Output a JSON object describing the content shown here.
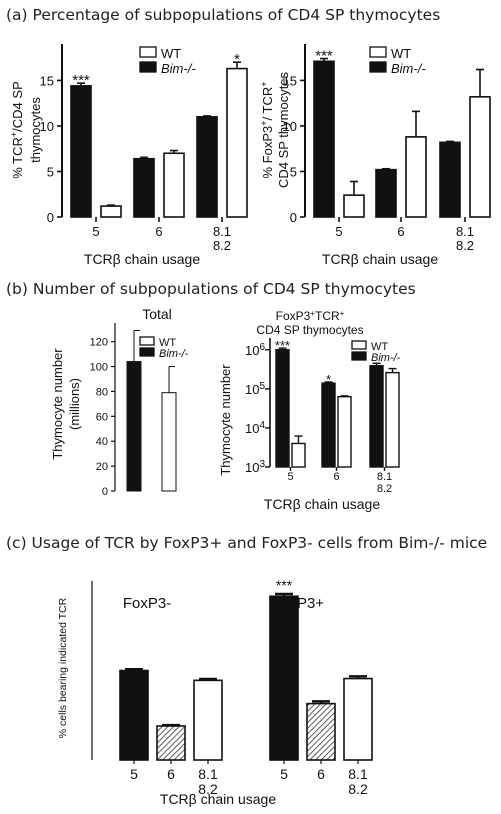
{
  "sections": {
    "a": "(a) Percentage of subpopulations of  CD4 SP thymocytes",
    "b": "(b) Number of subpopulations of  CD4 SP thymocytes",
    "c": "(c) Usage of TCR by FoxP3+ and FoxP3- cells from Bim-/- mice"
  },
  "colors": {
    "ink": "#111111",
    "fill_black": "#111111",
    "fill_white": "#ffffff",
    "hatch": "#333333"
  },
  "chart_data": [
    {
      "id": "a1",
      "type": "bar",
      "categories": [
        "5",
        "6",
        "8.1\n8.2"
      ],
      "series": [
        {
          "name": "WT",
          "fill": "white",
          "values": [
            1.2,
            7.0,
            16.3
          ],
          "errors": [
            0.1,
            0.3,
            0.7
          ]
        },
        {
          "name": "Bim-/-",
          "fill": "black",
          "values": [
            14.4,
            6.4,
            11.0
          ],
          "errors": [
            0.3,
            0.15,
            0.1
          ]
        }
      ],
      "series_order": [
        "Bim-/-",
        "WT"
      ],
      "ylim": [
        0,
        19
      ],
      "yticks": [
        0,
        5,
        10,
        15
      ],
      "ylabel": [
        "% TCR",
        "+",
        "/CD4 SP",
        "thymocytes"
      ],
      "xlabel": "TCRβ  chain usage",
      "legend": "top-right",
      "annotations": [
        {
          "category": "5",
          "series": "Bim-/-",
          "text": "***"
        },
        {
          "category": "8.1\n8.2",
          "series": "WT",
          "text": "*"
        }
      ]
    },
    {
      "id": "a2",
      "type": "bar",
      "categories": [
        "5",
        "6",
        "8.1\n8.2"
      ],
      "series": [
        {
          "name": "WT",
          "fill": "white",
          "values": [
            2.4,
            8.8,
            13.2
          ],
          "errors": [
            1.5,
            2.8,
            3.0
          ]
        },
        {
          "name": "Bim-/-",
          "fill": "black",
          "values": [
            17.1,
            5.2,
            8.2
          ],
          "errors": [
            0.3,
            0.1,
            0.1
          ]
        }
      ],
      "series_order": [
        "Bim-/-",
        "WT"
      ],
      "ylim": [
        0,
        19
      ],
      "yticks": [
        0,
        5,
        10,
        15
      ],
      "ylabel": [
        "% FoxP3",
        "+",
        "/ TCR",
        "+",
        "CD4 SP thymocytes"
      ],
      "xlabel": "TCRβ  chain usage",
      "legend": "top-right",
      "annotations": [
        {
          "category": "5",
          "series": "Bim-/-",
          "text": "***"
        }
      ]
    },
    {
      "id": "b1",
      "type": "bar",
      "title": "Total",
      "categories": [
        ""
      ],
      "series": [
        {
          "name": "Bim-/-",
          "fill": "black",
          "values": [
            104
          ],
          "errors": [
            25
          ]
        },
        {
          "name": "WT",
          "fill": "white",
          "values": [
            79
          ],
          "errors": [
            21
          ]
        }
      ],
      "series_order": [
        "Bim-/-",
        "WT"
      ],
      "ylim": [
        0,
        135
      ],
      "yticks": [
        0,
        20,
        40,
        60,
        80,
        100,
        120
      ],
      "ylabel": [
        "Thymocyte number",
        "(millions)"
      ],
      "legend": "top-right"
    },
    {
      "id": "b2",
      "type": "bar",
      "title": [
        "FoxP3",
        "+",
        "TCR",
        "+",
        "CD4 SP thymocytes"
      ],
      "categories": [
        "5",
        "6",
        "8.1\n8.2"
      ],
      "series": [
        {
          "name": "WT",
          "fill": "white",
          "values": [
            4000,
            63000,
            260000
          ],
          "errors": [
            2200,
            3000,
            70000
          ]
        },
        {
          "name": "Bim-/-",
          "fill": "black",
          "values": [
            1000000,
            140000,
            390000
          ],
          "errors": [
            100000,
            10000,
            60000
          ]
        }
      ],
      "series_order": [
        "Bim-/-",
        "WT"
      ],
      "yscale": "log",
      "ylim": [
        1000,
        2000000
      ],
      "ytick_labels": [
        "10^3",
        "10^4",
        "10^5",
        "10^6"
      ],
      "ylabel": [
        "Thymocyte number"
      ],
      "xlabel": "TCRβ chain usage",
      "legend": "top-right",
      "annotations": [
        {
          "category": "5",
          "series": "Bim-/-",
          "text": "***"
        },
        {
          "category": "6",
          "series": "Bim-/-",
          "text": "*"
        }
      ]
    },
    {
      "id": "c",
      "type": "bar",
      "groups": [
        {
          "name": "FoxP3-",
          "bars": [
            {
              "category": "5",
              "fill": "black",
              "value": 10.0,
              "error": 0.15
            },
            {
              "category": "6",
              "fill": "hatch",
              "value": 3.8,
              "error": 0.1
            },
            {
              "category": "8.1\n8.2",
              "fill": "white",
              "value": 8.9,
              "error": 0.15
            }
          ]
        },
        {
          "name": "FoxP3+",
          "bars": [
            {
              "category": "5",
              "fill": "black",
              "value": 18.3,
              "error": 0.25,
              "annotation": "***"
            },
            {
              "category": "6",
              "fill": "hatch",
              "value": 6.3,
              "error": 0.25
            },
            {
              "category": "8.1\n8.2",
              "fill": "white",
              "value": 9.1,
              "error": 0.25
            }
          ]
        }
      ],
      "ylim": [
        0,
        20
      ],
      "ylabel": [
        "% cells bearing indicated TCR"
      ],
      "xlabel": "TCRβ chain usage"
    }
  ]
}
